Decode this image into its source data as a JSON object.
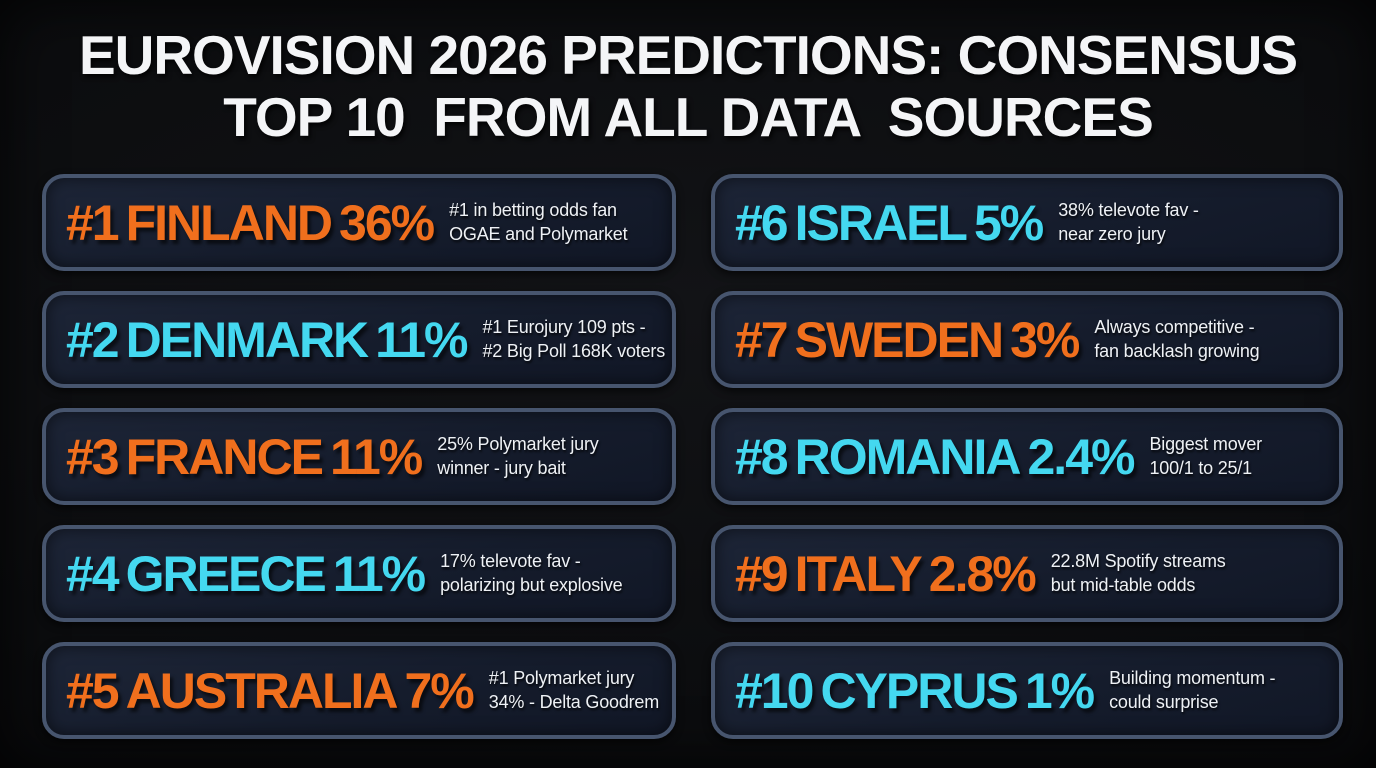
{
  "title": {
    "line1": "EUROVISION 2026 PREDICTIONS: CONSENSUS",
    "line2": "TOP 10  FROM ALL DATA  SOURCES"
  },
  "colors": {
    "background": "#0b0c0e",
    "card_background": "#161e2e",
    "card_border": "#47556e",
    "orange": "#f06f1d",
    "cyan": "#44d8f0",
    "text": "#f2f3f5"
  },
  "cards": [
    {
      "rank": "#1",
      "country": "FINLAND",
      "value": "36%",
      "accent": "orange",
      "note_line1": "#1 in betting odds fan",
      "note_line2": "OGAE and Polymarket"
    },
    {
      "rank": "#2",
      "country": "DENMARK",
      "value": "11%",
      "accent": "cyan",
      "note_line1": "#1 Eurojury 109 pts -",
      "note_line2": "#2 Big Poll 168K voters"
    },
    {
      "rank": "#3",
      "country": "FRANCE",
      "value": "11%",
      "accent": "orange",
      "note_line1": "25% Polymarket jury",
      "note_line2": "winner - jury bait"
    },
    {
      "rank": "#4",
      "country": "GREECE",
      "value": "11%",
      "accent": "cyan",
      "note_line1": "17% televote fav -",
      "note_line2": "polarizing but explosive"
    },
    {
      "rank": "#5",
      "country": "AUSTRALIA",
      "value": "7%",
      "accent": "orange",
      "note_line1": "#1 Polymarket jury",
      "note_line2": "34% - Delta Goodrem"
    },
    {
      "rank": "#6",
      "country": "ISRAEL",
      "value": "5%",
      "accent": "cyan",
      "note_line1": "38% televote fav -",
      "note_line2": "near zero jury"
    },
    {
      "rank": "#7",
      "country": "SWEDEN",
      "value": "3%",
      "accent": "orange",
      "note_line1": "Always competitive -",
      "note_line2": "fan backlash growing"
    },
    {
      "rank": "#8",
      "country": "ROMANIA",
      "value": "2.4%",
      "accent": "cyan",
      "note_line1": "Biggest mover",
      "note_line2": "100/1 to 25/1"
    },
    {
      "rank": "#9",
      "country": "ITALY",
      "value": "2.8%",
      "accent": "orange",
      "note_line1": "22.8M Spotify streams",
      "note_line2": "but mid-table odds"
    },
    {
      "rank": "#10",
      "country": "CYPRUS",
      "value": "1%",
      "accent": "cyan",
      "note_line1": "Building momentum -",
      "note_line2": "could surprise"
    }
  ],
  "chart_data": {
    "type": "table",
    "title": "EUROVISION 2026 PREDICTIONS: CONSENSUS TOP 10 FROM ALL DATA SOURCES",
    "columns": [
      "rank",
      "country",
      "consensus_win_probability_percent",
      "note"
    ],
    "rows": [
      [
        1,
        "FINLAND",
        36,
        "#1 in betting odds fan OGAE and Polymarket"
      ],
      [
        2,
        "DENMARK",
        11,
        "#1 Eurojury 109 pts - #2 Big Poll 168K voters"
      ],
      [
        3,
        "FRANCE",
        11,
        "25% Polymarket jury winner - jury bait"
      ],
      [
        4,
        "GREECE",
        11,
        "17% televote fav - polarizing but explosive"
      ],
      [
        5,
        "AUSTRALIA",
        7,
        "#1 Polymarket jury 34% - Delta Goodrem"
      ],
      [
        6,
        "ISRAEL",
        5,
        "38% televote fav - near zero jury"
      ],
      [
        7,
        "SWEDEN",
        3,
        "Always competitive - fan backlash growing"
      ],
      [
        8,
        "ROMANIA",
        2.4,
        "Biggest mover 100/1 to 25/1"
      ],
      [
        9,
        "ITALY",
        2.8,
        "22.8M Spotify streams but mid-table odds"
      ],
      [
        10,
        "CYPRUS",
        1,
        "Building momentum - could surprise"
      ]
    ],
    "layout": {
      "grid": "2 columns x 5 rows, ranks 1-5 left column, 6-10 right column",
      "accent_alternation": "odd ranks orange, even ranks cyan"
    }
  }
}
